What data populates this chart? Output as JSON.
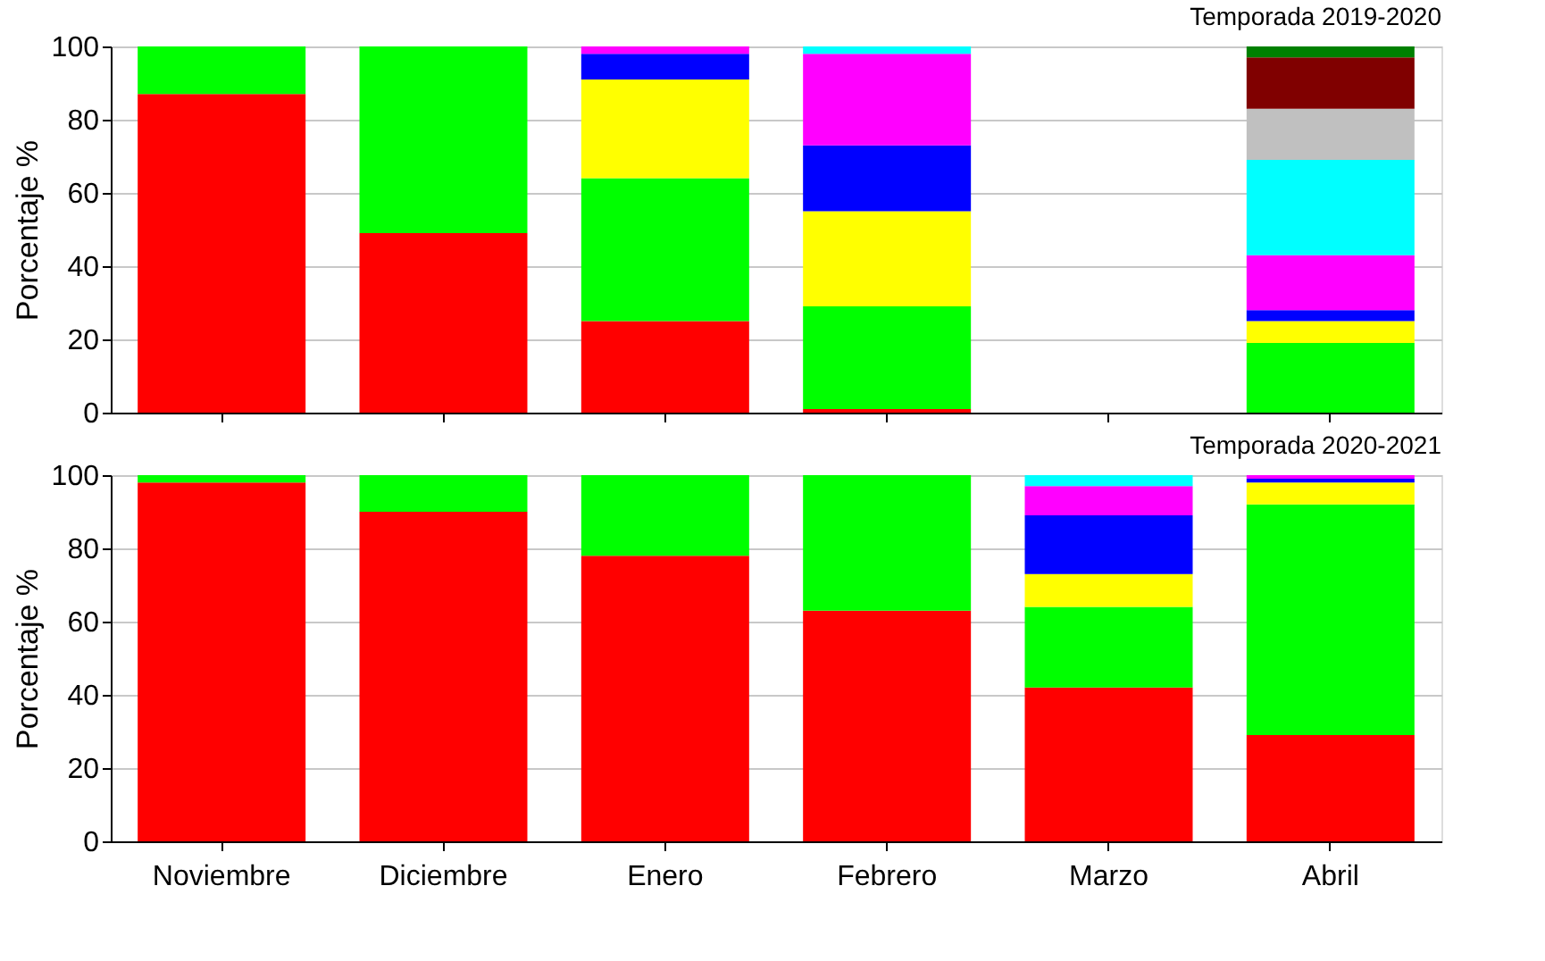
{
  "chart_data": [
    {
      "type": "bar",
      "stacked": true,
      "title": "Temporada 2019-2020",
      "ylabel": "Porcentaje %",
      "categories": [
        "Noviembre",
        "Diciembre",
        "Enero",
        "Febrero",
        "Marzo",
        "Abril"
      ],
      "ylim": [
        0,
        100
      ],
      "yticks": [
        0,
        20,
        40,
        60,
        80,
        100
      ],
      "grid": "y",
      "tick_labels": "y",
      "series": [
        {
          "color": "#ff0000",
          "values": [
            87,
            49,
            25,
            1,
            null,
            0
          ]
        },
        {
          "color": "#00ff00",
          "values": [
            13,
            51,
            39,
            28,
            null,
            19
          ]
        },
        {
          "color": "#ffff00",
          "values": [
            0,
            0,
            27,
            26,
            null,
            6
          ]
        },
        {
          "color": "#0000ff",
          "values": [
            0,
            0,
            7,
            18,
            null,
            3
          ]
        },
        {
          "color": "#ff00ff",
          "values": [
            0,
            0,
            2,
            25,
            null,
            15
          ]
        },
        {
          "color": "#00ffff",
          "values": [
            0,
            0,
            0,
            2,
            null,
            26
          ]
        },
        {
          "color": "#c0c0c0",
          "values": [
            0,
            0,
            0,
            0,
            null,
            14
          ]
        },
        {
          "color": "#800000",
          "values": [
            0,
            0,
            0,
            0,
            null,
            14
          ]
        },
        {
          "color": "#008000",
          "values": [
            0,
            0,
            0,
            0,
            null,
            3
          ]
        }
      ]
    },
    {
      "type": "bar",
      "stacked": true,
      "title": "Temporada 2020-2021",
      "ylabel": "Porcentaje %",
      "categories": [
        "Noviembre",
        "Diciembre",
        "Enero",
        "Febrero",
        "Marzo",
        "Abril"
      ],
      "ylim": [
        0,
        100
      ],
      "yticks": [
        0,
        20,
        40,
        60,
        80,
        100
      ],
      "grid": "y",
      "series": [
        {
          "color": "#ff0000",
          "values": [
            98,
            90,
            78,
            63,
            42,
            29
          ]
        },
        {
          "color": "#00ff00",
          "values": [
            2,
            10,
            22,
            37,
            22,
            63
          ]
        },
        {
          "color": "#ffff00",
          "values": [
            0,
            0,
            0,
            0,
            9,
            6
          ]
        },
        {
          "color": "#0000ff",
          "values": [
            0,
            0,
            0,
            0,
            16,
            1
          ]
        },
        {
          "color": "#ff00ff",
          "values": [
            0,
            0,
            0,
            0,
            8,
            1
          ]
        },
        {
          "color": "#00ffff",
          "values": [
            0,
            0,
            0,
            0,
            3,
            0
          ]
        }
      ]
    }
  ]
}
